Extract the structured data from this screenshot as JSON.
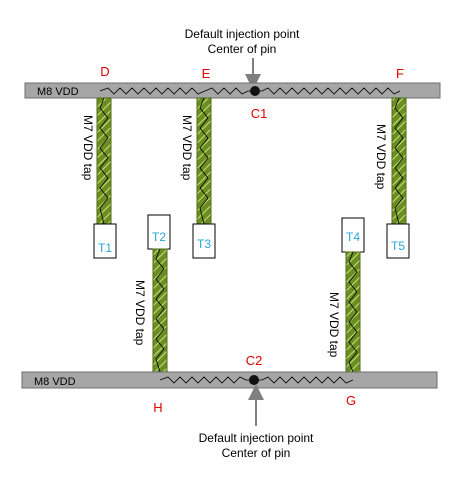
{
  "top_annotation": {
    "line1": "Default injection point",
    "line2": "Center of pin"
  },
  "bottom_annotation": {
    "line1": "Default injection point",
    "line2": "Center of pin"
  },
  "rails": {
    "top": "M8 VDD",
    "bottom": "M8 VDD"
  },
  "nodes": {
    "D": "D",
    "E": "E",
    "F": "F",
    "C1": "C1",
    "C2": "C2",
    "G": "G",
    "H": "H"
  },
  "tap_label": "M7 VDD tap",
  "taps": [
    "T1",
    "T2",
    "T3",
    "T4",
    "T5"
  ],
  "colors": {
    "rail_fill": "#a6a6a6",
    "tap_fill": "#6b8e23",
    "node_label": "#e00000",
    "tap_box_label": "#27a6d6"
  }
}
